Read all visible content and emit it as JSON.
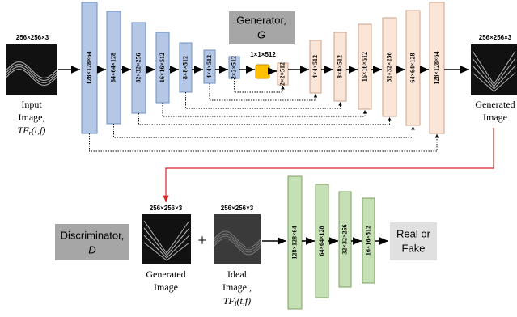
{
  "generator": {
    "title": "Generator,",
    "symbol": "G",
    "input": {
      "size": "256×256×3",
      "label_lines": [
        "Input",
        "Image,"
      ],
      "formula": {
        "base": "TF",
        "sub": "r",
        "args": "(t,f)"
      }
    },
    "encoder": [
      "128×128×64",
      "64×64×128",
      "32×32×256",
      "16×16×512",
      "8×8×512",
      "4×4×512",
      "2×2×512"
    ],
    "bottleneck": "1×1×512",
    "decoder": [
      "2×2×512",
      "4×4×512",
      "8×8×512",
      "16×16×512",
      "32×32×256",
      "64×64×128",
      "128×128×64"
    ],
    "output": {
      "size": "256×256×3",
      "label_lines": [
        "Generated",
        "Image"
      ]
    }
  },
  "discriminator": {
    "title": "Discriminator,",
    "symbol": "D",
    "generated": {
      "size": "256×256×3",
      "label_lines": [
        "Generated",
        "Image"
      ]
    },
    "plus": "+",
    "ideal": {
      "size": "256×256×3",
      "label_lines": [
        "Ideal",
        "Image ,"
      ],
      "formula": {
        "base": "TF",
        "sub": "I",
        "args": "(t,f)"
      }
    },
    "layers": [
      "128×128×64",
      "64×64×128",
      "32×32×256",
      "16×16×512"
    ],
    "result_lines": [
      "Real or",
      "Fake"
    ]
  }
}
